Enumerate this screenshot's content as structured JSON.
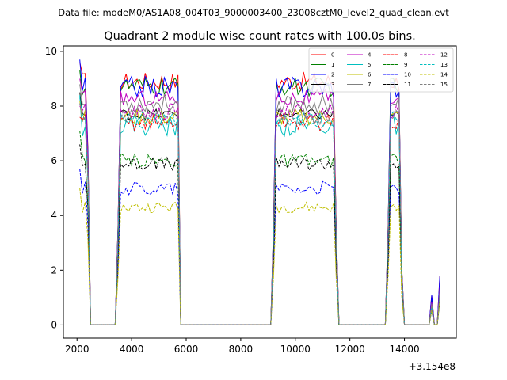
{
  "figure": {
    "suptitle": "Data file: modeM0/AS1A08_004T03_9000003400_23008cztM0_level2_quad_clean.evt"
  },
  "chart_data": {
    "type": "line",
    "title": "Quadrant 2 module wise count rates with 100.0s bins.",
    "xlabel": "",
    "ylabel": "",
    "offset_label": "+3.154e8",
    "xlim": [
      1500,
      15900
    ],
    "ylim": [
      -0.48,
      10.2
    ],
    "xticks": [
      2000,
      4000,
      6000,
      8000,
      10000,
      12000,
      14000
    ],
    "xtick_labels": [
      "2000",
      "4000",
      "6000",
      "8000",
      "10000",
      "12000",
      "14000"
    ],
    "yticks": [
      0,
      2,
      4,
      6,
      8,
      10
    ],
    "ytick_labels": [
      "0",
      "2",
      "4",
      "6",
      "8",
      "10"
    ],
    "grid": false,
    "legend_position": "top-right",
    "legend_columns": 4,
    "series": [
      {
        "name": "0",
        "color": "#ff0000",
        "dash": "solid",
        "level": 8.9,
        "jitter": 0.35,
        "start": 9.6,
        "tail": 1.8
      },
      {
        "name": "1",
        "color": "#008000",
        "dash": "solid",
        "level": 8.7,
        "jitter": 0.35,
        "start": 9.3,
        "tail": 1.5
      },
      {
        "name": "2",
        "color": "#0000ff",
        "dash": "solid",
        "level": 8.7,
        "jitter": 0.4,
        "start": 9.7,
        "tail": 1.8
      },
      {
        "name": "3",
        "color": "#000000",
        "dash": "solid",
        "level": 7.7,
        "jitter": 0.2,
        "start": 8.5,
        "tail": 1.2
      },
      {
        "name": "4",
        "color": "#bf00bf",
        "dash": "solid",
        "level": 8.3,
        "jitter": 0.3,
        "start": 9.0,
        "tail": 1.4
      },
      {
        "name": "5",
        "color": "#00bfbf",
        "dash": "solid",
        "level": 7.3,
        "jitter": 0.4,
        "start": 8.4,
        "tail": 1.1
      },
      {
        "name": "6",
        "color": "#bfbf00",
        "dash": "solid",
        "level": 7.6,
        "jitter": 0.3,
        "start": 8.2,
        "tail": 1.1
      },
      {
        "name": "7",
        "color": "#808080",
        "dash": "solid",
        "level": 8.1,
        "jitter": 0.35,
        "start": 8.8,
        "tail": 1.3
      },
      {
        "name": "8",
        "color": "#ff0000",
        "dash": "dashed",
        "level": 7.4,
        "jitter": 0.3,
        "start": 7.6,
        "tail": 1.1
      },
      {
        "name": "9",
        "color": "#008000",
        "dash": "dashed",
        "level": 6.0,
        "jitter": 0.25,
        "start": 7.1,
        "tail": 0.9
      },
      {
        "name": "10",
        "color": "#0000ff",
        "dash": "dashed",
        "level": 5.0,
        "jitter": 0.25,
        "start": 5.7,
        "tail": 0.9
      },
      {
        "name": "11",
        "color": "#000000",
        "dash": "dashed",
        "level": 5.9,
        "jitter": 0.25,
        "start": 6.6,
        "tail": 1.0
      },
      {
        "name": "12",
        "color": "#bf00bf",
        "dash": "dashed",
        "level": 7.8,
        "jitter": 0.3,
        "start": 8.0,
        "tail": 1.2
      },
      {
        "name": "13",
        "color": "#00bfbf",
        "dash": "dashed",
        "level": 7.5,
        "jitter": 0.3,
        "start": 8.3,
        "tail": 1.1
      },
      {
        "name": "14",
        "color": "#bfbf00",
        "dash": "dashed",
        "level": 4.3,
        "jitter": 0.2,
        "start": 5.0,
        "tail": 0.9
      },
      {
        "name": "15",
        "color": "#808080",
        "dash": "dashed",
        "level": 7.6,
        "jitter": 0.3,
        "start": 8.1,
        "tail": 1.2
      }
    ],
    "time_profile": {
      "x_start": 2100,
      "x_end": 15300,
      "bin": 100,
      "on_intervals": [
        [
          2100,
          2300
        ],
        [
          3600,
          5700
        ],
        [
          9300,
          11400
        ],
        [
          13500,
          13800
        ]
      ],
      "ramp_points": [
        [
          2400,
          1.8
        ],
        [
          3500,
          1.0
        ],
        [
          9200,
          1.0
        ],
        [
          11500,
          1.0
        ],
        [
          13400,
          1.0
        ],
        [
          13900,
          0.6
        ],
        [
          15000,
          0.3
        ]
      ]
    }
  }
}
